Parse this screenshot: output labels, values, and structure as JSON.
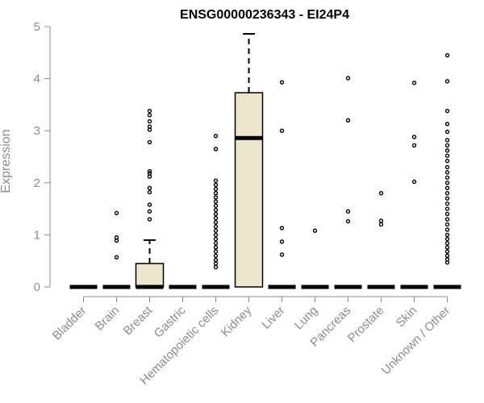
{
  "chart_data": {
    "type": "box",
    "title": "ENSG00000236343 - EI24P4",
    "xlabel": "",
    "ylabel": "Expression",
    "ylim": [
      0,
      5
    ],
    "yticks": [
      0,
      1,
      2,
      3,
      4,
      5
    ],
    "grid": false,
    "box_fill": "#ede6cc",
    "categories": [
      "Bladder",
      "Brain",
      "Breast",
      "Gastric",
      "Hematopoietic cells",
      "Kidney",
      "Liver",
      "Lung",
      "Pancreas",
      "Prostate",
      "Skin",
      "Unknown / Other"
    ],
    "boxes": [
      {
        "q1": 0,
        "median": 0,
        "q3": 0,
        "whisker_low": 0,
        "whisker_high": 0,
        "outliers": []
      },
      {
        "q1": 0,
        "median": 0,
        "q3": 0,
        "whisker_low": 0,
        "whisker_high": 0,
        "outliers": [
          0.57,
          0.89,
          0.95,
          1.42
        ]
      },
      {
        "q1": 0,
        "median": 0,
        "q3": 0.45,
        "whisker_low": 0,
        "whisker_high": 0.9,
        "outliers": [
          1.3,
          1.45,
          1.58,
          1.82,
          1.9,
          2.12,
          2.18,
          2.22,
          2.78,
          3.02,
          3.08,
          3.18,
          3.3,
          3.38
        ]
      },
      {
        "q1": 0,
        "median": 0,
        "q3": 0,
        "whisker_low": 0,
        "whisker_high": 0,
        "outliers": []
      },
      {
        "q1": 0,
        "median": 0,
        "q3": 0,
        "whisker_low": 0,
        "whisker_high": 0,
        "outliers": [
          0.38,
          0.45,
          0.52,
          0.6,
          0.68,
          0.76,
          0.84,
          0.92,
          1.0,
          1.08,
          1.16,
          1.24,
          1.32,
          1.4,
          1.48,
          1.56,
          1.64,
          1.72,
          1.8,
          1.88,
          1.96,
          2.04,
          2.65,
          2.9
        ]
      },
      {
        "q1": 0,
        "median": 2.86,
        "q3": 3.73,
        "whisker_low": 0,
        "whisker_high": 4.86,
        "outliers": []
      },
      {
        "q1": 0,
        "median": 0,
        "q3": 0,
        "whisker_low": 0,
        "whisker_high": 0,
        "outliers": [
          0.62,
          0.87,
          1.13,
          3.0,
          3.93
        ]
      },
      {
        "q1": 0,
        "median": 0,
        "q3": 0,
        "whisker_low": 0,
        "whisker_high": 0,
        "outliers": [
          1.08
        ]
      },
      {
        "q1": 0,
        "median": 0,
        "q3": 0,
        "whisker_low": 0,
        "whisker_high": 0,
        "outliers": [
          1.26,
          1.45,
          3.2,
          4.01
        ]
      },
      {
        "q1": 0,
        "median": 0,
        "q3": 0,
        "whisker_low": 0,
        "whisker_high": 0,
        "outliers": [
          1.2,
          1.27,
          1.8
        ]
      },
      {
        "q1": 0,
        "median": 0,
        "q3": 0,
        "whisker_low": 0,
        "whisker_high": 0,
        "outliers": [
          2.02,
          2.72,
          2.88,
          3.92
        ]
      },
      {
        "q1": 0,
        "median": 0,
        "q3": 0,
        "whisker_low": 0,
        "whisker_high": 0,
        "outliers": [
          0.47,
          0.53,
          0.6,
          0.68,
          0.76,
          0.84,
          0.92,
          1.0,
          1.1,
          1.2,
          1.3,
          1.4,
          1.5,
          1.6,
          1.7,
          1.8,
          1.9,
          2.0,
          2.1,
          2.2,
          2.3,
          2.42,
          2.52,
          2.62,
          2.72,
          2.82,
          2.98,
          3.13,
          3.38,
          3.95,
          4.45
        ]
      }
    ]
  }
}
